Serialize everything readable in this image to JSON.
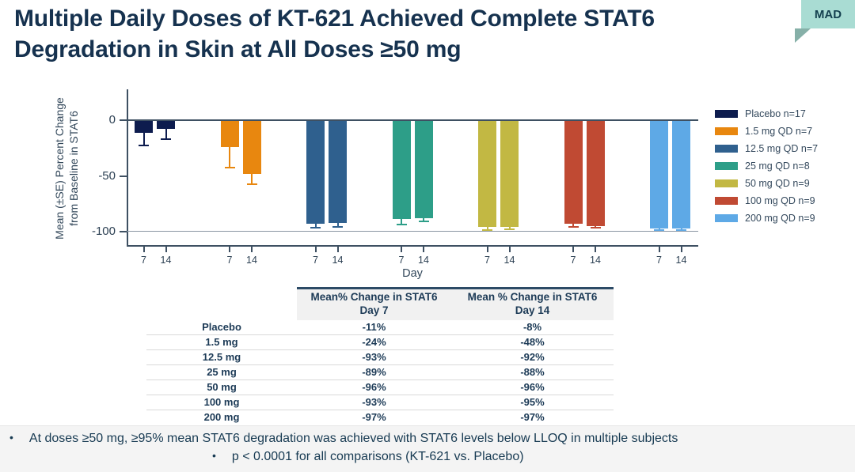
{
  "slide": {
    "title": "Multiple Daily Doses of KT-621 Achieved Complete STAT6 Degradation in Skin at All Doses ≥50 mg",
    "badge": "MAD"
  },
  "colors": {
    "text_navy": "#16324f",
    "axis": "#3e5062",
    "badge_bg": "#a9dcd3",
    "badge_fold": "#86b0a8",
    "table_header_bg": "#f1f1f1",
    "table_header_border": "#2c4a66",
    "footer_bg": "#f4f4f4"
  },
  "chart_data": {
    "type": "bar",
    "title": "",
    "ylabel_line1": "Mean (±SE) Percent Change",
    "ylabel_line2": "from Baseline in STAT6",
    "xlabel": "Day",
    "yticks": [
      0,
      -50,
      -100
    ],
    "ylim": [
      -113,
      28
    ],
    "reference_lines": [
      0,
      -100
    ],
    "grid": false,
    "legend_position": "right",
    "day_ticks": [
      "7",
      "14"
    ],
    "groups": [
      {
        "name": "Placebo n=17",
        "slug": "placebo",
        "color": "#0d1c4e",
        "values": [
          -11,
          -8
        ],
        "se": [
          11,
          8
        ]
      },
      {
        "name": "1.5 mg QD n=7",
        "slug": "1-5mg",
        "color": "#e8870f",
        "values": [
          -24,
          -48
        ],
        "se": [
          18,
          9
        ]
      },
      {
        "name": "12.5 mg QD n=7",
        "slug": "12-5mg",
        "color": "#2f608e",
        "values": [
          -93,
          -92
        ],
        "se": [
          3,
          3
        ]
      },
      {
        "name": "25 mg QD n=8",
        "slug": "25mg",
        "color": "#2d9e88",
        "values": [
          -89,
          -88
        ],
        "se": [
          4,
          2
        ]
      },
      {
        "name": "50 mg QD n=9",
        "slug": "50mg",
        "color": "#c2b843",
        "values": [
          -96,
          -96
        ],
        "se": [
          2,
          1
        ]
      },
      {
        "name": "100 mg QD n=9",
        "slug": "100mg",
        "color": "#c04a33",
        "values": [
          -93,
          -95
        ],
        "se": [
          2,
          1
        ]
      },
      {
        "name": "200 mg QD n=9",
        "slug": "200mg",
        "color": "#5ea9e6",
        "values": [
          -97,
          -97
        ],
        "se": [
          1,
          1
        ]
      }
    ]
  },
  "table": {
    "columns": [
      {
        "line1": "Mean% Change in STAT6",
        "line2": "Day 7"
      },
      {
        "line1": "Mean % Change in STAT6",
        "line2": "Day 14"
      }
    ],
    "rows": [
      {
        "label": "Placebo",
        "day7": "-11%",
        "day14": "-8%"
      },
      {
        "label": "1.5 mg",
        "day7": "-24%",
        "day14": "-48%"
      },
      {
        "label": "12.5 mg",
        "day7": "-93%",
        "day14": "-92%"
      },
      {
        "label": "25 mg",
        "day7": "-89%",
        "day14": "-88%"
      },
      {
        "label": "50 mg",
        "day7": "-96%",
        "day14": "-96%"
      },
      {
        "label": "100 mg",
        "day7": "-93%",
        "day14": "-95%"
      },
      {
        "label": "200 mg",
        "day7": "-97%",
        "day14": "-97%"
      }
    ]
  },
  "footer": {
    "bullet_char": "•",
    "bullet1": "At doses ≥50 mg, ≥95% mean STAT6 degradation was achieved with STAT6 levels below LLOQ in multiple subjects",
    "bullet2": "p < 0.0001 for all comparisons (KT-621 vs. Placebo)"
  }
}
